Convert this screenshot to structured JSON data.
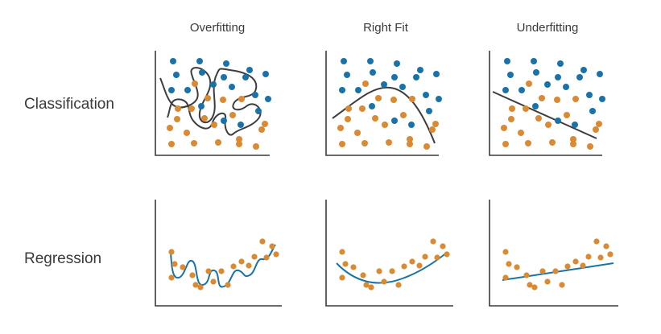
{
  "columns": [
    "Overfitting",
    "Right Fit",
    "Underfitting"
  ],
  "rows": [
    "Classification",
    "Regression"
  ],
  "colors": {
    "blue": "#1a73a8",
    "orange": "#d98a32",
    "boundary": "#3d3d3d",
    "axis": "#3a3a3a"
  }
}
